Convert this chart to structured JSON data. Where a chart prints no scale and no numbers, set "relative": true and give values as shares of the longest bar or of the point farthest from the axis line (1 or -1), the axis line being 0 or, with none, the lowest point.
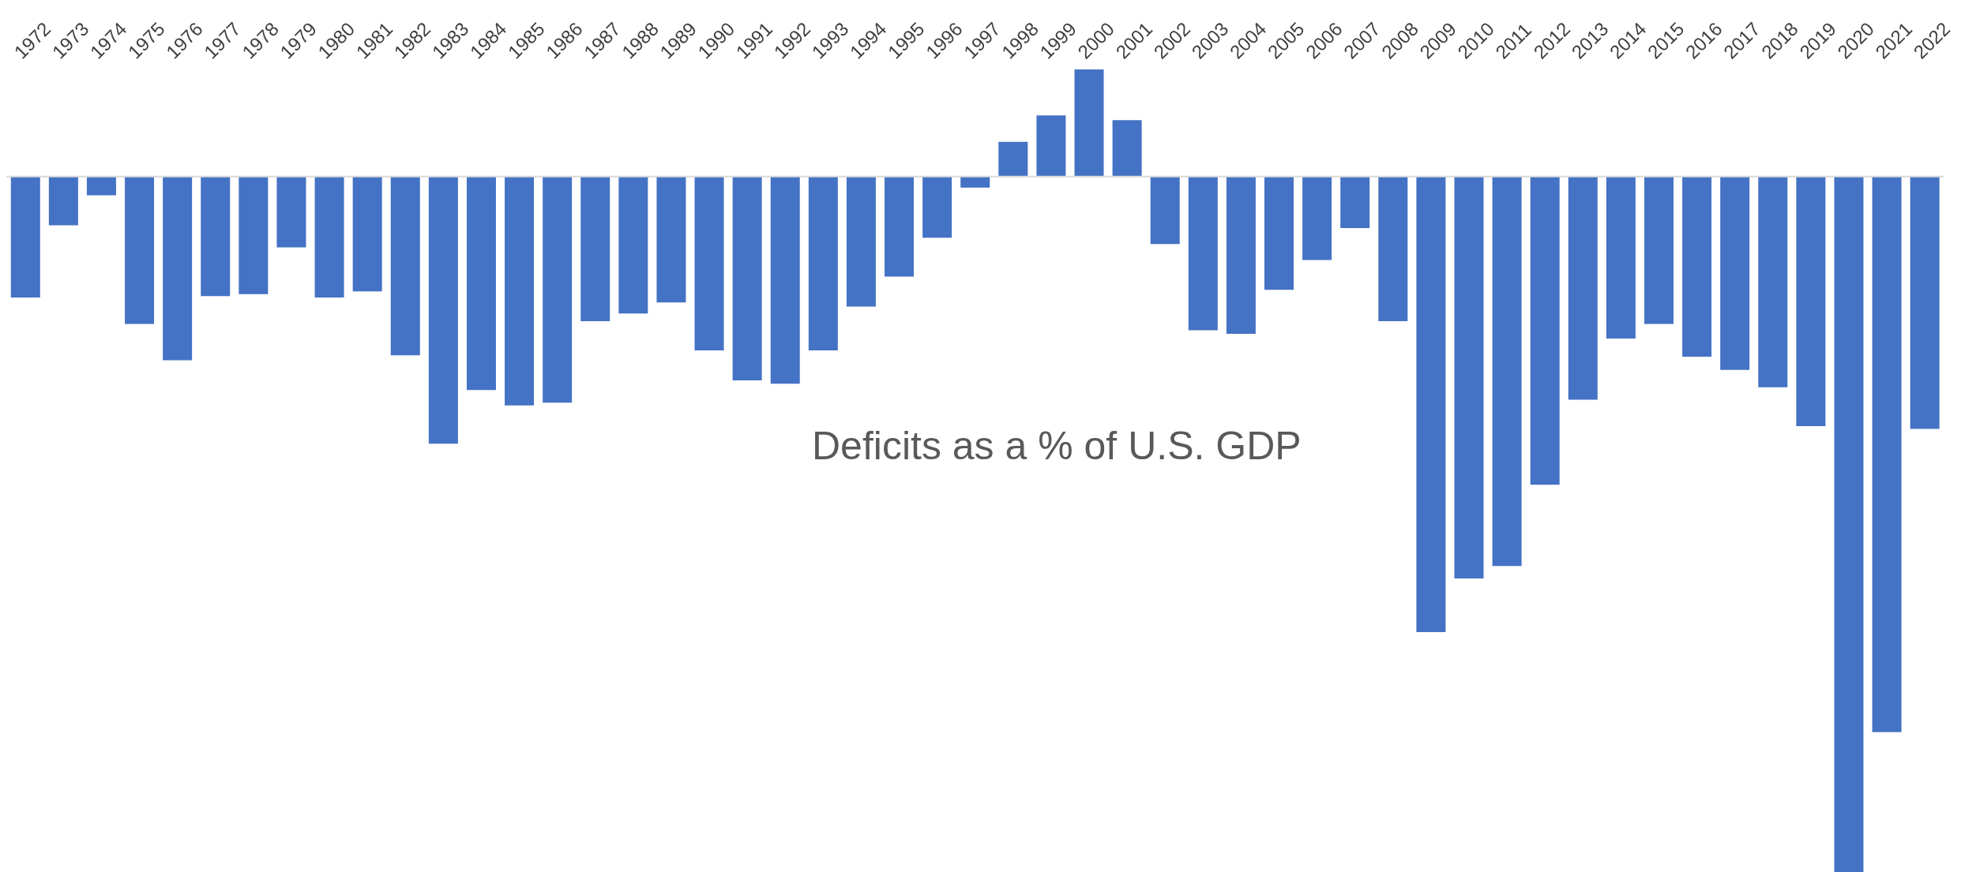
{
  "chart_data": {
    "type": "bar",
    "title": "Deficits as a % of U.S. GDP",
    "relative": true,
    "color": "#4472c4",
    "categories": [
      "1972",
      "1973",
      "1974",
      "1975",
      "1976",
      "1977",
      "1978",
      "1979",
      "1980",
      "1981",
      "1982",
      "1983",
      "1984",
      "1985",
      "1986",
      "1987",
      "1988",
      "1989",
      "1990",
      "1991",
      "1992",
      "1993",
      "1994",
      "1995",
      "1996",
      "1997",
      "1998",
      "1999",
      "2000",
      "2001",
      "2002",
      "2003",
      "2004",
      "2005",
      "2006",
      "2007",
      "2008",
      "2009",
      "2010",
      "2011",
      "2012",
      "2013",
      "2014",
      "2015",
      "2016",
      "2017",
      "2018",
      "2019",
      "2020",
      "2021",
      "2022"
    ],
    "values": [
      -0.174,
      -0.07,
      -0.027,
      -0.212,
      -0.264,
      -0.172,
      -0.169,
      -0.102,
      -0.174,
      -0.165,
      -0.257,
      -0.384,
      -0.307,
      -0.329,
      -0.325,
      -0.208,
      -0.197,
      -0.181,
      -0.25,
      -0.293,
      -0.298,
      -0.25,
      -0.187,
      -0.144,
      -0.088,
      -0.016,
      0.05,
      0.088,
      0.154,
      0.081,
      -0.097,
      -0.221,
      -0.226,
      -0.163,
      -0.12,
      -0.074,
      -0.208,
      -0.655,
      -0.578,
      -0.56,
      -0.443,
      -0.321,
      -0.233,
      -0.212,
      -0.259,
      -0.278,
      -0.303,
      -0.359,
      -1,
      -0.799,
      -0.363
    ],
    "grid": false,
    "legend": false
  }
}
